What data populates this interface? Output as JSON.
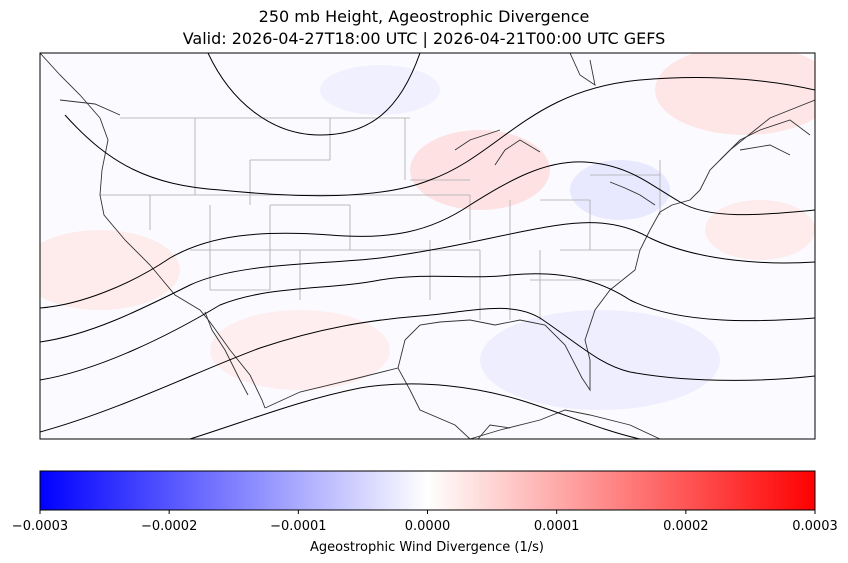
{
  "title": {
    "line1": "250 mb Height, Ageostrophic Divergence",
    "line2": "Valid: 2026-04-27T18:00 UTC | 2026-04-21T00:00 UTC GEFS"
  },
  "map": {
    "region": "Contiguous United States",
    "field": "Ageostrophic Wind Divergence",
    "contour_field": "250 mb Height",
    "colormap": "bwr"
  },
  "colorbar": {
    "label": "Ageostrophic Wind Divergence (1/s)",
    "min": -0.0003,
    "max": 0.0003,
    "ticks": [
      "−0.0003",
      "−0.0002",
      "−0.0001",
      "0.0000",
      "0.0001",
      "0.0002",
      "0.0003"
    ],
    "colors": {
      "low": "#0000ff",
      "mid": "#ffffff",
      "high": "#ff0000"
    }
  }
}
